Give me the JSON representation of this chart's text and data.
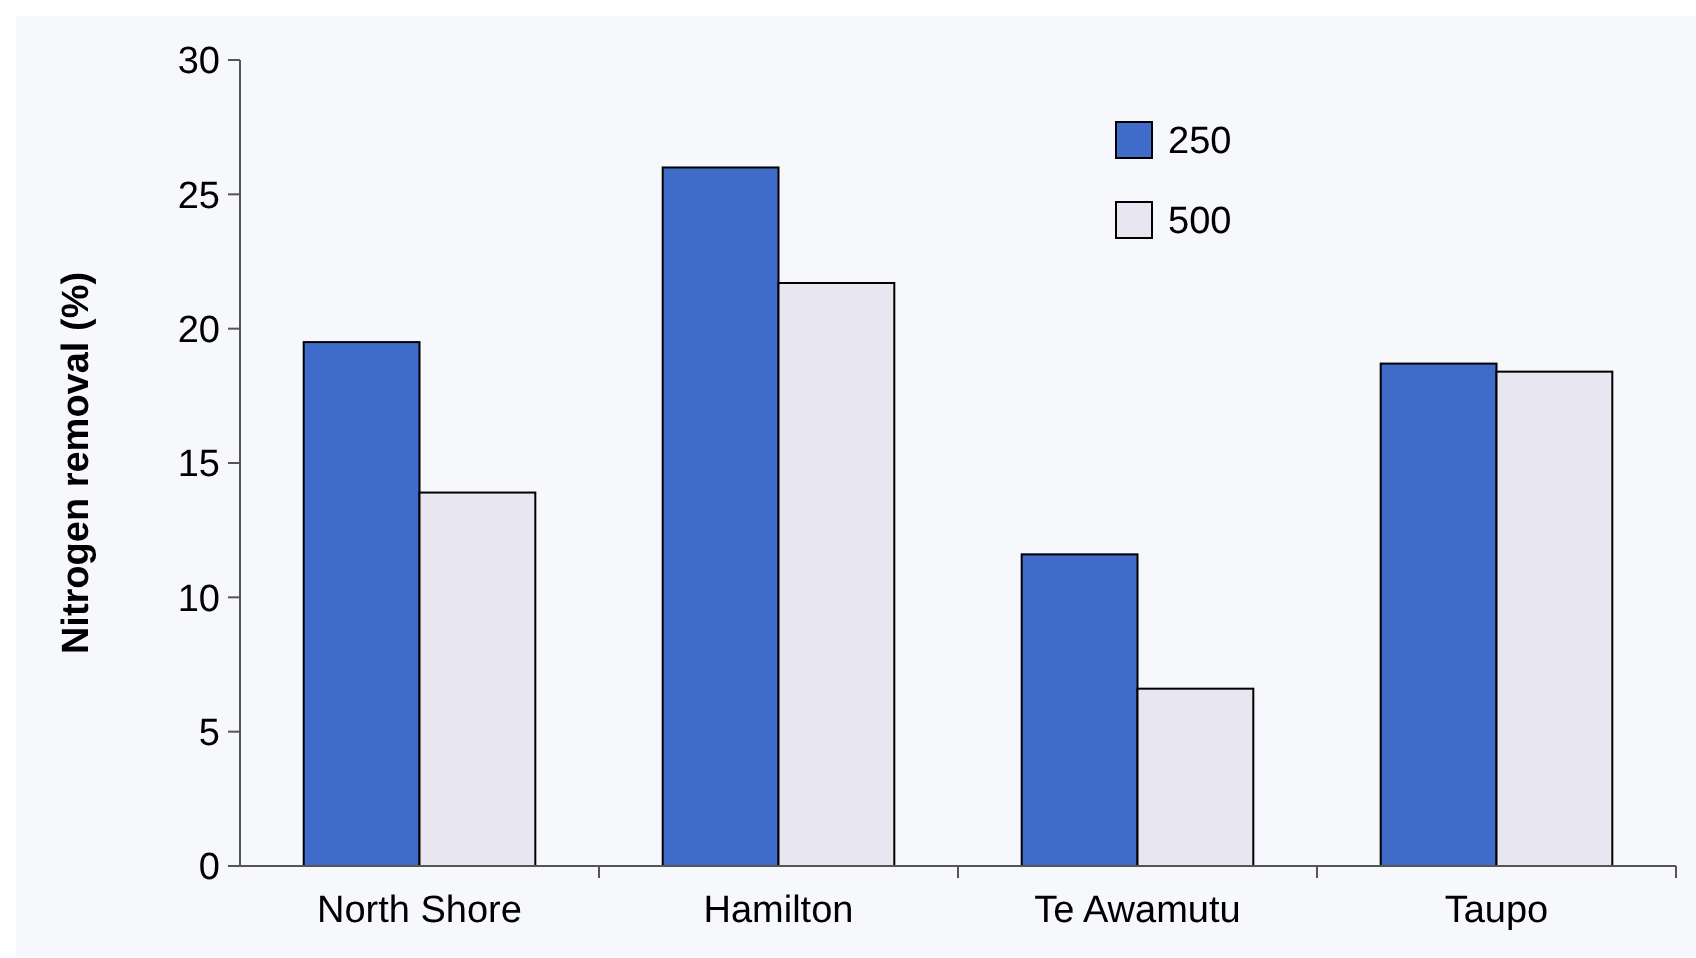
{
  "chart_data": {
    "type": "bar",
    "ylabel": "Nitrogen removal (%)",
    "categories": [
      "North Shore",
      "Hamilton",
      "Te Awamutu",
      "Taupo"
    ],
    "series": [
      {
        "name": "250",
        "color": "#3f6cc9",
        "values": [
          19.5,
          26,
          11.6,
          18.7
        ]
      },
      {
        "name": "500",
        "color": "#e8e6f0",
        "values": [
          13.9,
          21.7,
          6.6,
          18.4
        ]
      }
    ],
    "ylim": [
      0,
      30
    ],
    "yticks": [
      0,
      5,
      10,
      15,
      20,
      25,
      30
    ],
    "grid": false,
    "legend": "top right"
  }
}
